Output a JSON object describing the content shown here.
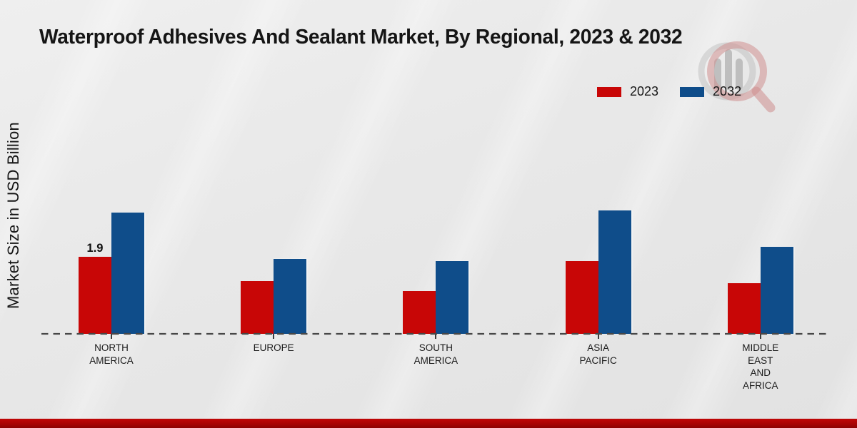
{
  "title": "Waterproof Adhesives And Sealant Market, By Regional, 2023 & 2032",
  "y_axis": {
    "label": "Market Size in USD Billion"
  },
  "legend": {
    "items": [
      {
        "label": "2023",
        "color": "#c80606"
      },
      {
        "label": "2032",
        "color": "#0f4d8a"
      }
    ]
  },
  "chart_data": {
    "type": "bar",
    "title": "Waterproof Adhesives And Sealant Market, By Regional, 2023 & 2032",
    "ylabel": "Market Size in USD Billion",
    "categories": [
      "NORTH AMERICA",
      "EUROPE",
      "SOUTH AMERICA",
      "ASIA PACIFIC",
      "MIDDLE EAST AND AFRICA"
    ],
    "category_lines": [
      [
        "NORTH",
        "AMERICA"
      ],
      [
        "EUROPE"
      ],
      [
        "SOUTH",
        "AMERICA"
      ],
      [
        "ASIA",
        "PACIFIC"
      ],
      [
        "MIDDLE",
        "EAST",
        "AND",
        "AFRICA"
      ]
    ],
    "series": [
      {
        "name": "2023",
        "color": "#c80606",
        "values": [
          1.9,
          1.3,
          1.05,
          1.8,
          1.25
        ]
      },
      {
        "name": "2032",
        "color": "#0f4d8a",
        "values": [
          3.0,
          1.85,
          1.8,
          3.05,
          2.15
        ]
      }
    ],
    "data_labels": [
      {
        "series": "2023",
        "category_index": 0,
        "text": "1.9"
      }
    ],
    "ylim": [
      0,
      3.3
    ],
    "grid": false,
    "legend_position": "top-right",
    "x_baseline_style": "dashed"
  },
  "watermark": {
    "icon": "magnifier-bar-chart-logo"
  },
  "footer": {
    "accent_color": "#a80404"
  }
}
